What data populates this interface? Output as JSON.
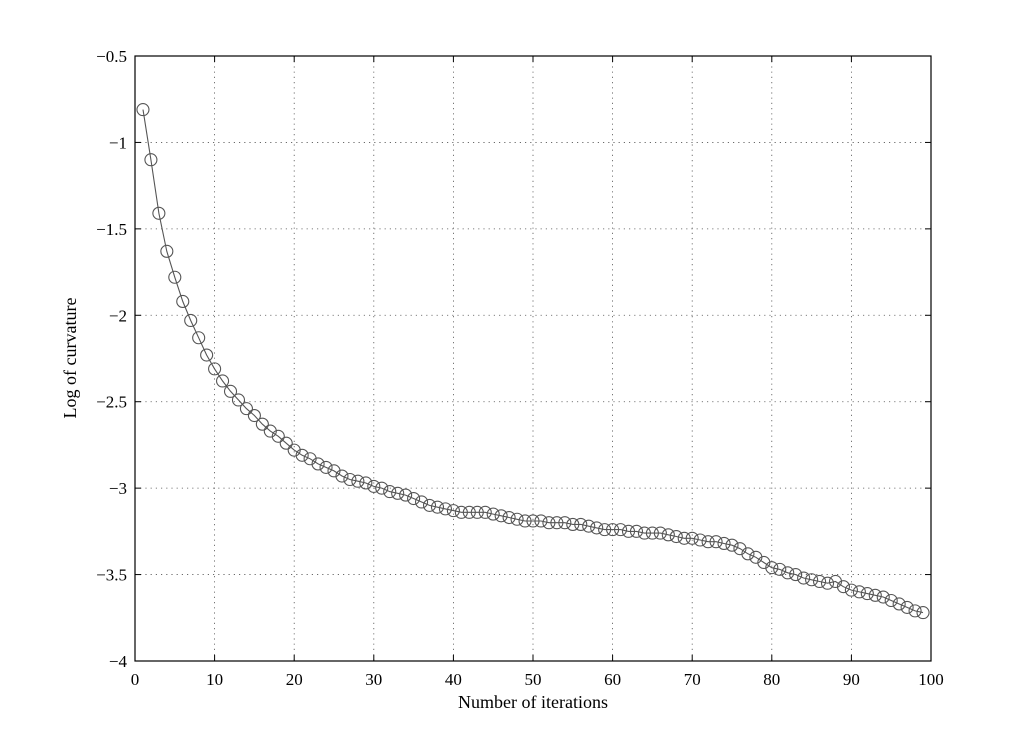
{
  "chart_data": {
    "type": "line",
    "title": "",
    "xlabel": "Number of iterations",
    "ylabel": "Log of curvature",
    "xlim": [
      0,
      100
    ],
    "ylim": [
      -4,
      -0.5
    ],
    "xticks": [
      0,
      10,
      20,
      30,
      40,
      50,
      60,
      70,
      80,
      90,
      100
    ],
    "xtick_labels": [
      "0",
      "10",
      "20",
      "30",
      "40",
      "50",
      "60",
      "70",
      "80",
      "90",
      "100"
    ],
    "yticks": [
      -4,
      -3.5,
      -3,
      -2.5,
      -2,
      -1.5,
      -1,
      -0.5
    ],
    "ytick_labels": [
      "−4",
      "−3.5",
      "−3",
      "−2.5",
      "−2",
      "−1.5",
      "−1",
      "−0.5"
    ],
    "grid": true,
    "line_color": "#555555",
    "marker": "circle-open",
    "x": [
      1,
      2,
      3,
      4,
      5,
      6,
      7,
      8,
      9,
      10,
      11,
      12,
      13,
      14,
      15,
      16,
      17,
      18,
      19,
      20,
      21,
      22,
      23,
      24,
      25,
      26,
      27,
      28,
      29,
      30,
      31,
      32,
      33,
      34,
      35,
      36,
      37,
      38,
      39,
      40,
      41,
      42,
      43,
      44,
      45,
      46,
      47,
      48,
      49,
      50,
      51,
      52,
      53,
      54,
      55,
      56,
      57,
      58,
      59,
      60,
      61,
      62,
      63,
      64,
      65,
      66,
      67,
      68,
      69,
      70,
      71,
      72,
      73,
      74,
      75,
      76,
      77,
      78,
      79,
      80,
      81,
      82,
      83,
      84,
      85,
      86,
      87,
      88,
      89,
      90,
      91,
      92,
      93,
      94,
      95,
      96,
      97,
      98,
      99
    ],
    "y": [
      -0.81,
      -1.1,
      -1.41,
      -1.63,
      -1.78,
      -1.92,
      -2.03,
      -2.13,
      -2.23,
      -2.31,
      -2.38,
      -2.44,
      -2.49,
      -2.54,
      -2.58,
      -2.63,
      -2.67,
      -2.7,
      -2.74,
      -2.78,
      -2.81,
      -2.83,
      -2.86,
      -2.88,
      -2.9,
      -2.93,
      -2.95,
      -2.96,
      -2.97,
      -2.99,
      -3.0,
      -3.02,
      -3.03,
      -3.04,
      -3.06,
      -3.08,
      -3.1,
      -3.11,
      -3.12,
      -3.13,
      -3.14,
      -3.14,
      -3.14,
      -3.14,
      -3.15,
      -3.16,
      -3.17,
      -3.18,
      -3.19,
      -3.19,
      -3.19,
      -3.2,
      -3.2,
      -3.2,
      -3.21,
      -3.21,
      -3.22,
      -3.23,
      -3.24,
      -3.24,
      -3.24,
      -3.25,
      -3.25,
      -3.26,
      -3.26,
      -3.26,
      -3.27,
      -3.28,
      -3.29,
      -3.29,
      -3.3,
      -3.31,
      -3.31,
      -3.32,
      -3.33,
      -3.35,
      -3.38,
      -3.4,
      -3.43,
      -3.46,
      -3.47,
      -3.49,
      -3.5,
      -3.52,
      -3.53,
      -3.54,
      -3.55,
      -3.54,
      -3.57,
      -3.59,
      -3.6,
      -3.61,
      -3.62,
      -3.63,
      -3.65,
      -3.67,
      -3.69,
      -3.71,
      -3.72
    ]
  }
}
